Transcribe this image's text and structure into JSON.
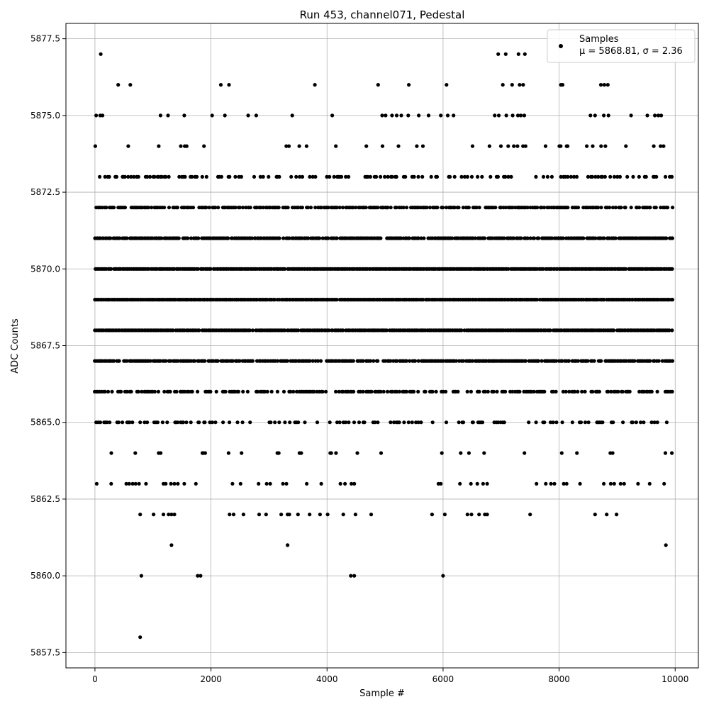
{
  "chart_data": {
    "type": "scatter",
    "title": "Run 453, channel071, Pedestal",
    "xlabel": "Sample #",
    "ylabel": "ADC Counts",
    "xlim": [
      -500,
      10400
    ],
    "ylim": [
      5857.0,
      5878.0
    ],
    "x_ticks": [
      0,
      2000,
      4000,
      6000,
      8000,
      10000
    ],
    "y_ticks": [
      5857.5,
      5860.0,
      5862.5,
      5865.0,
      5867.5,
      5870.0,
      5872.5,
      5875.0,
      5877.5
    ],
    "x_tick_labels": [
      "0",
      "2000",
      "4000",
      "6000",
      "8000",
      "10000"
    ],
    "y_tick_labels": [
      "5857.5",
      "5860.0",
      "5862.5",
      "5865.0",
      "5867.5",
      "5870.0",
      "5872.5",
      "5875.0",
      "5877.5"
    ],
    "grid": true,
    "legend_position": "top-right",
    "marker_color": "#000000",
    "series": [
      {
        "name": "Samples",
        "stats_label": "μ = 5868.81, σ = 2.36",
        "x_range": [
          0,
          9950
        ],
        "n_samples": 10000,
        "band_levels": [
          {
            "y": 5866,
            "density": 0.55
          },
          {
            "y": 5867,
            "density": 0.85
          },
          {
            "y": 5868,
            "density": 0.97
          },
          {
            "y": 5869,
            "density": 0.99
          },
          {
            "y": 5870,
            "density": 0.97
          },
          {
            "y": 5871,
            "density": 0.9
          },
          {
            "y": 5872,
            "density": 0.7
          },
          {
            "y": 5865,
            "density": 0.3
          },
          {
            "y": 5873,
            "density": 0.3
          },
          {
            "y": 5864,
            "density": 0.1
          },
          {
            "y": 5874,
            "density": 0.08
          }
        ],
        "sparse_points": [
          [
            100,
            5877
          ],
          [
            6950,
            5877
          ],
          [
            7080,
            5877
          ],
          [
            7300,
            5877
          ],
          [
            7410,
            5877
          ],
          [
            400,
            5876
          ],
          [
            610,
            5876
          ],
          [
            2170,
            5876
          ],
          [
            2310,
            5876
          ],
          [
            3790,
            5876
          ],
          [
            4880,
            5876
          ],
          [
            5410,
            5876
          ],
          [
            6060,
            5876
          ],
          [
            7030,
            5876
          ],
          [
            7190,
            5876
          ],
          [
            7320,
            5876
          ],
          [
            7380,
            5876
          ],
          [
            8030,
            5876
          ],
          [
            8060,
            5876
          ],
          [
            8720,
            5876
          ],
          [
            8780,
            5876
          ],
          [
            8840,
            5876
          ],
          [
            20,
            5875
          ],
          [
            90,
            5875
          ],
          [
            130,
            5875
          ],
          [
            1130,
            5875
          ],
          [
            1260,
            5875
          ],
          [
            1540,
            5875
          ],
          [
            2020,
            5875
          ],
          [
            2240,
            5875
          ],
          [
            2640,
            5875
          ],
          [
            2780,
            5875
          ],
          [
            3400,
            5875
          ],
          [
            4090,
            5875
          ],
          [
            4950,
            5875
          ],
          [
            5010,
            5875
          ],
          [
            5120,
            5875
          ],
          [
            5200,
            5875
          ],
          [
            5280,
            5875
          ],
          [
            5400,
            5875
          ],
          [
            5580,
            5875
          ],
          [
            5750,
            5875
          ],
          [
            5960,
            5875
          ],
          [
            6080,
            5875
          ],
          [
            6180,
            5875
          ],
          [
            6890,
            5875
          ],
          [
            6960,
            5875
          ],
          [
            7090,
            5875
          ],
          [
            7200,
            5875
          ],
          [
            7290,
            5875
          ],
          [
            7340,
            5875
          ],
          [
            7400,
            5875
          ],
          [
            8540,
            5875
          ],
          [
            8620,
            5875
          ],
          [
            8770,
            5875
          ],
          [
            8850,
            5875
          ],
          [
            9240,
            5875
          ],
          [
            9520,
            5875
          ],
          [
            9650,
            5875
          ],
          [
            9710,
            5875
          ],
          [
            9760,
            5875
          ],
          [
            780,
            5862
          ],
          [
            1010,
            5862
          ],
          [
            1180,
            5862
          ],
          [
            1270,
            5862
          ],
          [
            1320,
            5862
          ],
          [
            1370,
            5862
          ],
          [
            2320,
            5862
          ],
          [
            2390,
            5862
          ],
          [
            2560,
            5862
          ],
          [
            2830,
            5862
          ],
          [
            2950,
            5862
          ],
          [
            3210,
            5862
          ],
          [
            3320,
            5862
          ],
          [
            3350,
            5862
          ],
          [
            3500,
            5862
          ],
          [
            3700,
            5862
          ],
          [
            3880,
            5862
          ],
          [
            4010,
            5862
          ],
          [
            4280,
            5862
          ],
          [
            4490,
            5862
          ],
          [
            4760,
            5862
          ],
          [
            5810,
            5862
          ],
          [
            6030,
            5862
          ],
          [
            6420,
            5862
          ],
          [
            6490,
            5862
          ],
          [
            6620,
            5862
          ],
          [
            6720,
            5862
          ],
          [
            6760,
            5862
          ],
          [
            7500,
            5862
          ],
          [
            8620,
            5862
          ],
          [
            8820,
            5862
          ],
          [
            8990,
            5862
          ],
          [
            1320,
            5861
          ],
          [
            3320,
            5861
          ],
          [
            9840,
            5861
          ],
          [
            800,
            5860
          ],
          [
            1770,
            5860
          ],
          [
            1820,
            5860
          ],
          [
            4410,
            5860
          ],
          [
            4470,
            5860
          ],
          [
            6000,
            5860
          ],
          [
            780,
            5858
          ]
        ],
        "low_points_5863": [
          30,
          280,
          540,
          590,
          650,
          700,
          760,
          880,
          1180,
          1220,
          1310,
          1370,
          1430,
          1540,
          1740,
          2370,
          2510,
          2820,
          2960,
          3020,
          3240,
          3300,
          3650,
          3900,
          4230,
          4310,
          4420,
          4470,
          5920,
          5960,
          6290,
          6480,
          6590,
          6690,
          6760,
          7610,
          7770,
          7860,
          7920,
          8080,
          8130,
          8360,
          8770,
          8890,
          8950,
          9060,
          9120,
          9360,
          9560,
          9810
        ]
      }
    ]
  }
}
